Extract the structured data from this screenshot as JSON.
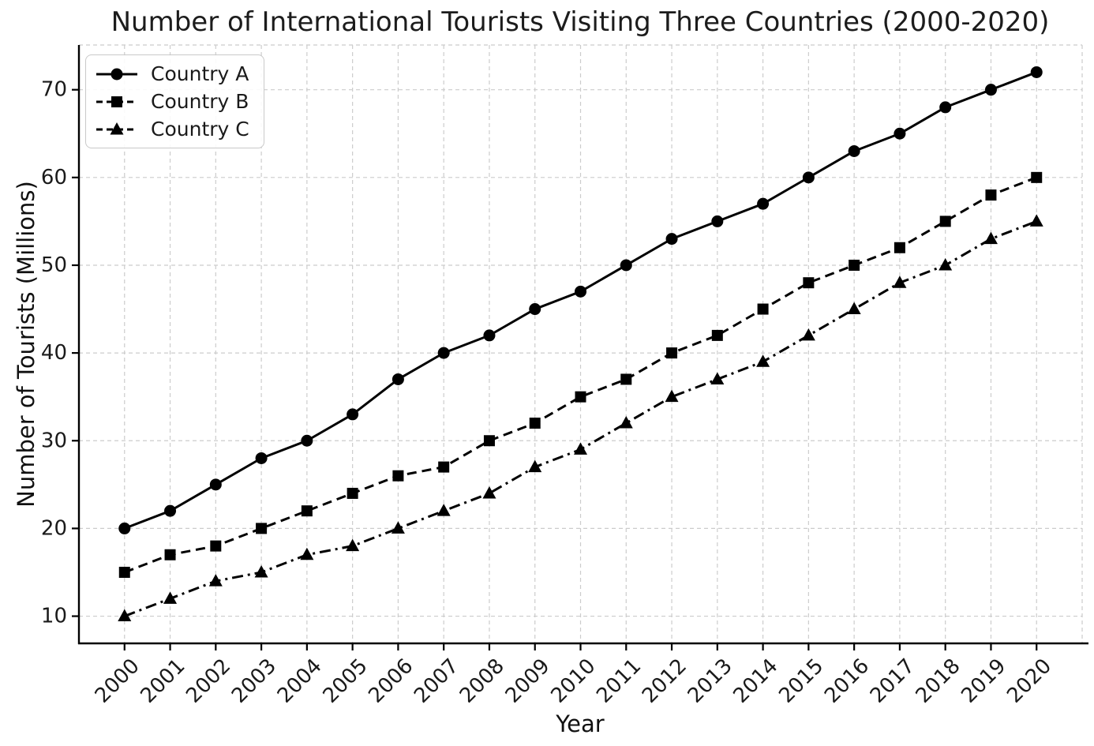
{
  "chart_data": {
    "type": "line",
    "title": "Number of International Tourists Visiting Three Countries (2000-2020)",
    "xlabel": "Year",
    "ylabel": "Number of Tourists (Millions)",
    "x": [
      2000,
      2001,
      2002,
      2003,
      2004,
      2005,
      2006,
      2007,
      2008,
      2009,
      2010,
      2011,
      2012,
      2013,
      2014,
      2015,
      2016,
      2017,
      2018,
      2019,
      2020
    ],
    "series": [
      {
        "name": "Country A",
        "marker": "circle",
        "line_style": "solid",
        "color": "#000000",
        "values": [
          20,
          22,
          25,
          28,
          30,
          33,
          37,
          40,
          42,
          45,
          47,
          50,
          53,
          55,
          57,
          60,
          63,
          65,
          68,
          70,
          72
        ]
      },
      {
        "name": "Country B",
        "marker": "square",
        "line_style": "dashed",
        "color": "#000000",
        "values": [
          15,
          17,
          18,
          20,
          22,
          24,
          26,
          27,
          30,
          32,
          35,
          37,
          40,
          42,
          45,
          48,
          50,
          52,
          55,
          58,
          60
        ]
      },
      {
        "name": "Country C",
        "marker": "triangle",
        "line_style": "dashdot",
        "color": "#000000",
        "values": [
          10,
          12,
          14,
          15,
          17,
          18,
          20,
          22,
          24,
          27,
          29,
          32,
          35,
          37,
          39,
          42,
          45,
          48,
          50,
          53,
          55
        ]
      }
    ],
    "y_ticks": [
      10,
      20,
      30,
      40,
      50,
      60,
      70
    ],
    "ylim": [
      6.9,
      75.1
    ],
    "xlim": [
      1999,
      2021
    ],
    "grid": true,
    "grid_color": "#cccccc",
    "axis_color": "#000000",
    "text_color": "#1a1a1a",
    "background": "#ffffff",
    "legend_position": "upper left",
    "x_tick_rotation": 45
  }
}
